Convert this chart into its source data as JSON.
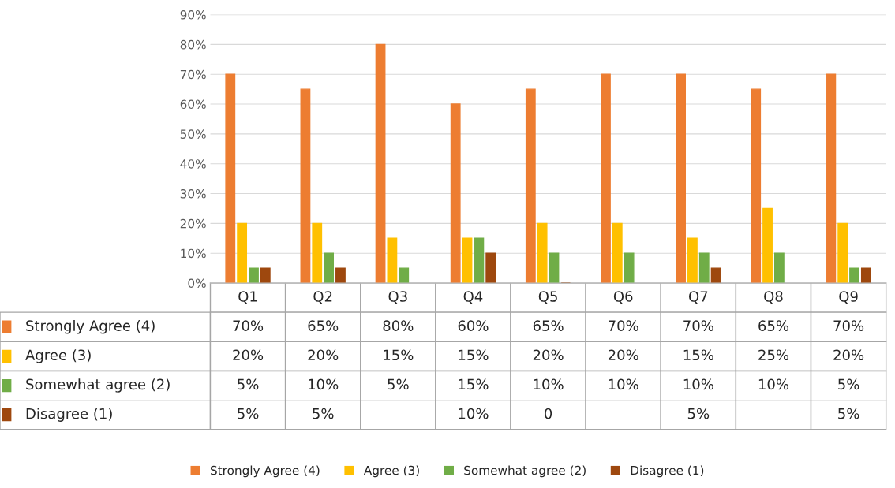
{
  "chart_data": {
    "type": "bar",
    "categories": [
      "Q1",
      "Q2",
      "Q3",
      "Q4",
      "Q5",
      "Q6",
      "Q7",
      "Q8",
      "Q9"
    ],
    "series": [
      {
        "name": "Strongly Agree (4)",
        "color": "#ed7d31",
        "values": [
          70,
          65,
          80,
          60,
          65,
          70,
          70,
          65,
          70
        ],
        "value_labels": [
          "70%",
          "65%",
          "80%",
          "60%",
          "65%",
          "70%",
          "70%",
          "65%",
          "70%"
        ]
      },
      {
        "name": "Agree (3)",
        "color": "#ffc000",
        "values": [
          20,
          20,
          15,
          15,
          20,
          20,
          15,
          25,
          20
        ],
        "value_labels": [
          "20%",
          "20%",
          "15%",
          "15%",
          "20%",
          "20%",
          "15%",
          "25%",
          "20%"
        ]
      },
      {
        "name": "Somewhat agree (2)",
        "color": "#70ad47",
        "values": [
          5,
          10,
          5,
          15,
          10,
          10,
          10,
          10,
          5
        ],
        "value_labels": [
          "5%",
          "10%",
          "5%",
          "15%",
          "10%",
          "10%",
          "10%",
          "10%",
          "5%"
        ]
      },
      {
        "name": "Disagree (1)",
        "color": "#9e480e",
        "values": [
          5,
          5,
          null,
          10,
          0,
          null,
          5,
          null,
          5
        ],
        "value_labels": [
          "5%",
          "5%",
          null,
          "10%",
          "0",
          null,
          "5%",
          null,
          "5%"
        ]
      }
    ],
    "ylim": [
      0,
      90
    ],
    "yticks": [
      {
        "value": 0,
        "label": "0%"
      },
      {
        "value": 10,
        "label": "10%"
      },
      {
        "value": 20,
        "label": "20%"
      },
      {
        "value": 30,
        "label": "30%"
      },
      {
        "value": 40,
        "label": "40%"
      },
      {
        "value": 50,
        "label": "50%"
      },
      {
        "value": 60,
        "label": "60%"
      },
      {
        "value": 70,
        "label": "70%"
      },
      {
        "value": 80,
        "label": "80%"
      },
      {
        "value": 90,
        "label": "90%"
      }
    ],
    "grid": "y",
    "legend": "bottom"
  }
}
